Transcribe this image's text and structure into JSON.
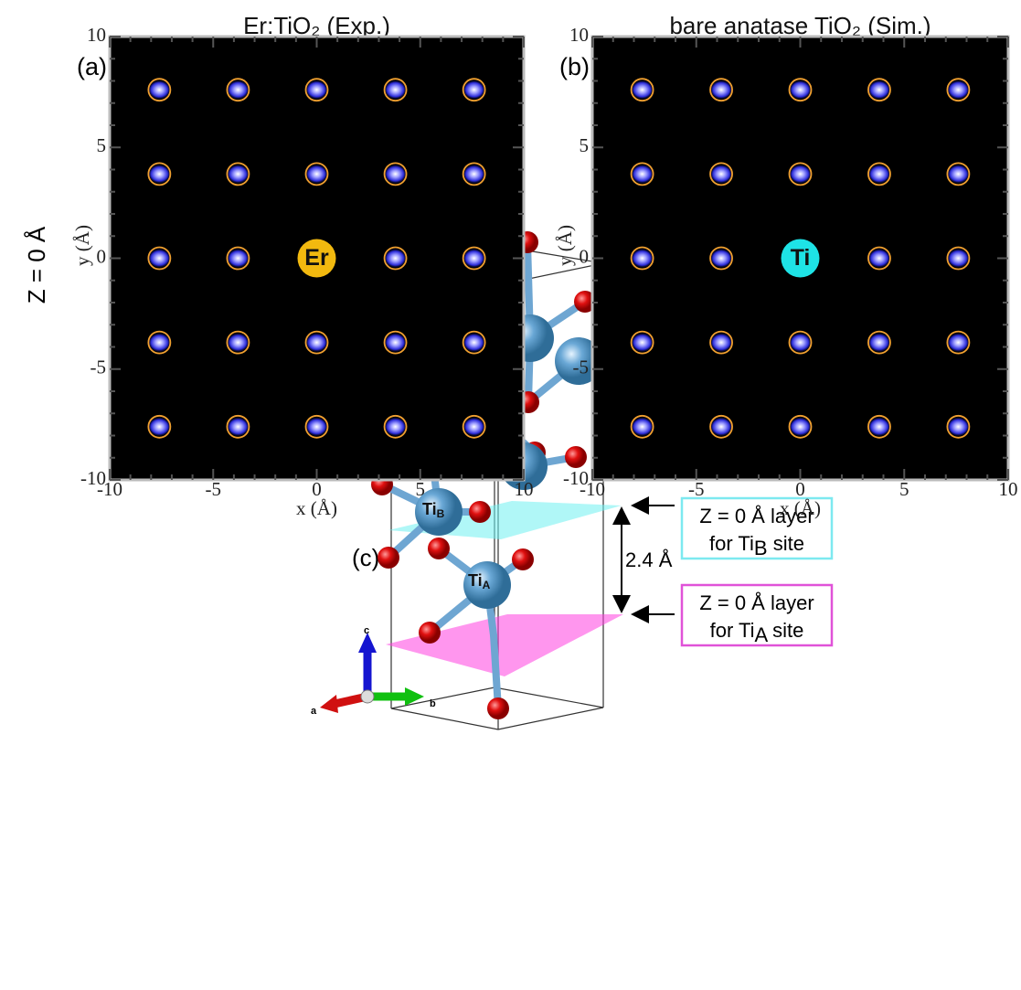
{
  "chart_data": [
    {
      "type": "image-map",
      "title": "Er:TiO₂ (Exp.)",
      "panel_label": "(a)",
      "center_label": "Er",
      "center_color": "#f2b90f",
      "xlabel": "x (Å)",
      "ylabel": "y (Å)",
      "xlim": [
        -10,
        10
      ],
      "ylim": [
        -10,
        10
      ],
      "xticks": [
        -10,
        -5,
        0,
        5,
        10
      ],
      "yticks": [
        -10,
        -5,
        0,
        5,
        10
      ],
      "marker_color": "#f0a030",
      "points": {
        "x": [
          -7.6,
          -3.8,
          0,
          3.8,
          7.6,
          -7.6,
          -3.8,
          0,
          3.8,
          7.6,
          -7.6,
          -3.8,
          0,
          3.8,
          7.6,
          -7.6,
          -3.8,
          0,
          3.8,
          7.6,
          -7.6,
          -3.8,
          0,
          3.8,
          7.6
        ],
        "y": [
          7.6,
          7.6,
          7.6,
          7.6,
          7.6,
          3.8,
          3.8,
          3.8,
          3.8,
          3.8,
          0,
          0,
          0,
          0,
          0,
          -3.8,
          -3.8,
          -3.8,
          -3.8,
          -3.8,
          -7.6,
          -7.6,
          -7.6,
          -7.6,
          -7.6
        ]
      }
    },
    {
      "type": "image-map",
      "title": "bare anatase TiO₂ (Sim.)",
      "panel_label": "(b)",
      "center_label": "Ti",
      "center_color": "#1ee3e6",
      "xlabel": "x (Å)",
      "ylabel": "y (Å)",
      "xlim": [
        -10,
        10
      ],
      "ylim": [
        -10,
        10
      ],
      "xticks": [
        -10,
        -5,
        0,
        5,
        10
      ],
      "yticks": [
        -10,
        -5,
        0,
        5,
        10
      ],
      "marker_color": "#f0a030",
      "points": {
        "x": [
          -7.6,
          -3.8,
          0,
          3.8,
          7.6,
          -7.6,
          -3.8,
          0,
          3.8,
          7.6,
          -7.6,
          -3.8,
          0,
          3.8,
          7.6,
          -7.6,
          -3.8,
          0,
          3.8,
          7.6,
          -7.6,
          -3.8,
          0,
          3.8,
          7.6
        ],
        "y": [
          7.6,
          7.6,
          7.6,
          7.6,
          7.6,
          3.8,
          3.8,
          3.8,
          3.8,
          3.8,
          0,
          0,
          0,
          0,
          0,
          -3.8,
          -3.8,
          -3.8,
          -3.8,
          -3.8,
          -7.6,
          -7.6,
          -7.6,
          -7.6,
          -7.6
        ]
      }
    }
  ],
  "row_label": "Z = 0 Å",
  "structure": {
    "panel_label": "(c)",
    "sites": [
      {
        "text": "Ti",
        "sub": "B"
      },
      {
        "text": "Ti",
        "sub": "A"
      }
    ],
    "layers": [
      {
        "line1": "Z = 0 Å layer",
        "line2": {
          "text": "for Ti",
          "sub": "B",
          "tail": " site"
        }
      },
      {
        "line1": "Z = 0 Å layer",
        "line2": {
          "text": "for Ti",
          "sub": "A",
          "tail": " site"
        }
      }
    ],
    "spacing": "2.4 Å",
    "axes": [
      "c",
      "a",
      "b"
    ]
  }
}
